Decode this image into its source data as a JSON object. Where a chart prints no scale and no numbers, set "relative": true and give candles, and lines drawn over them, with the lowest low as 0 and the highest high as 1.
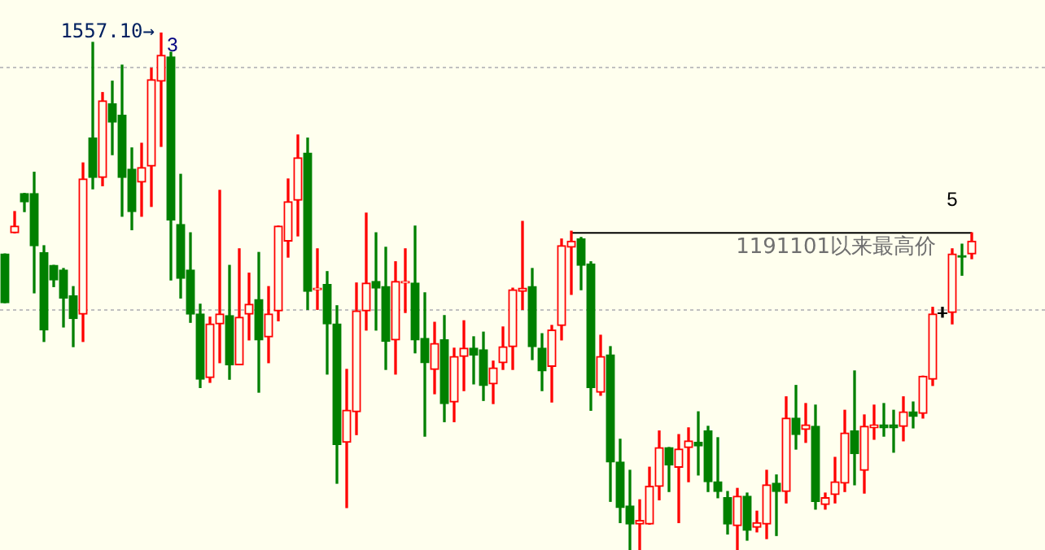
{
  "chart_data": {
    "type": "candlestick",
    "relative": true,
    "categories": [
      null,
      null,
      null,
      null,
      null,
      null,
      null,
      null,
      null,
      null,
      null,
      null,
      null,
      null,
      null,
      null,
      null,
      null,
      null,
      null,
      null,
      null,
      null,
      null,
      null,
      null,
      null,
      null,
      null,
      null,
      null,
      null,
      null,
      null,
      null,
      null,
      null,
      null,
      null,
      null,
      null,
      null,
      null,
      null,
      null,
      null,
      null,
      null,
      null,
      null,
      null,
      null,
      null,
      null,
      null,
      null,
      null,
      null,
      null,
      null,
      null,
      null,
      null,
      null,
      null,
      null,
      null,
      null,
      null,
      null,
      null,
      null,
      null,
      null,
      null,
      null,
      null,
      null,
      null,
      null,
      null,
      null,
      null,
      null,
      null,
      null,
      null,
      null,
      null,
      null,
      null,
      null,
      null,
      null,
      null,
      null,
      null,
      null,
      null,
      null
    ],
    "ohlc": [
      [
        0.572,
        0.572,
        0.478,
        0.478
      ],
      [
        0.613,
        0.654,
        0.613,
        0.626
      ],
      [
        0.689,
        0.689,
        0.654,
        0.673
      ],
      [
        0.689,
        0.73,
        0.497,
        0.588
      ],
      [
        0.575,
        0.588,
        0.403,
        0.425
      ],
      [
        0.55,
        0.55,
        0.509,
        0.522
      ],
      [
        0.541,
        0.544,
        0.431,
        0.487
      ],
      [
        0.491,
        0.509,
        0.393,
        0.447
      ],
      [
        0.456,
        0.748,
        0.403,
        0.717
      ],
      [
        0.796,
        0.981,
        0.698,
        0.72
      ],
      [
        0.72,
        0.884,
        0.704,
        0.868
      ],
      [
        0.862,
        0.906,
        0.764,
        0.827
      ],
      [
        0.84,
        0.937,
        0.645,
        0.72
      ],
      [
        0.736,
        0.777,
        0.619,
        0.654
      ],
      [
        0.711,
        0.786,
        0.645,
        0.739
      ],
      [
        0.742,
        0.931,
        0.664,
        0.909
      ],
      [
        0.906,
        1,
        0.78,
        0.956
      ],
      [
        0.953,
        0.962,
        0.522,
        0.638
      ],
      [
        0.629,
        0.726,
        0.487,
        0.525
      ],
      [
        0.541,
        0.613,
        0.44,
        0.456
      ],
      [
        0.456,
        0.475,
        0.314,
        0.33
      ],
      [
        0.333,
        0.45,
        0.324,
        0.437
      ],
      [
        0.437,
        0.695,
        0.362,
        0.456
      ],
      [
        0.453,
        0.55,
        0.33,
        0.358
      ],
      [
        0.358,
        0.582,
        0.358,
        0.45
      ],
      [
        0.456,
        0.535,
        0.406,
        0.475
      ],
      [
        0.484,
        0.575,
        0.305,
        0.406
      ],
      [
        0.412,
        0.509,
        0.362,
        0.456
      ],
      [
        0.462,
        0.626,
        0.443,
        0.626
      ],
      [
        0.597,
        0.717,
        0.566,
        0.673
      ],
      [
        0.676,
        0.802,
        0.607,
        0.758
      ],
      [
        0.767,
        0.796,
        0.465,
        0.5
      ],
      [
        0.503,
        0.582,
        0.465,
        0.506
      ],
      [
        0.513,
        0.538,
        0.34,
        0.437
      ],
      [
        0.437,
        0.472,
        0.129,
        0.204
      ],
      [
        0.208,
        0.349,
        0.082,
        0.27
      ],
      [
        0.267,
        0.516,
        0.223,
        0.462
      ],
      [
        0.462,
        0.651,
        0.425,
        0.516
      ],
      [
        0.519,
        0.613,
        0.425,
        0.506
      ],
      [
        0.509,
        0.585,
        0.349,
        0.403
      ],
      [
        0.406,
        0.557,
        0.34,
        0.519
      ],
      [
        0.516,
        0.582,
        0.459,
        0.519
      ],
      [
        0.516,
        0.626,
        0.381,
        0.406
      ],
      [
        0.409,
        0.497,
        0.22,
        0.362
      ],
      [
        0.349,
        0.44,
        0.302,
        0.399
      ],
      [
        0.406,
        0.453,
        0.248,
        0.283
      ],
      [
        0.286,
        0.39,
        0.248,
        0.374
      ],
      [
        0.374,
        0.443,
        0.308,
        0.39
      ],
      [
        0.39,
        0.412,
        0.321,
        0.377
      ],
      [
        0.387,
        0.421,
        0.289,
        0.318
      ],
      [
        0.321,
        0.365,
        0.283,
        0.352
      ],
      [
        0.362,
        0.431,
        0.349,
        0.393
      ],
      [
        0.393,
        0.506,
        0.349,
        0.503
      ],
      [
        0.5,
        0.635,
        0.465,
        0.506
      ],
      [
        0.509,
        0.544,
        0.368,
        0.393
      ],
      [
        0.39,
        0.418,
        0.308,
        0.346
      ],
      [
        0.355,
        0.434,
        0.286,
        0.425
      ],
      [
        0.434,
        0.601,
        0.406,
        0.588
      ],
      [
        0.585,
        0.616,
        0.494,
        0.597
      ],
      [
        0.601,
        0.604,
        0.503,
        0.55
      ],
      [
        0.553,
        0.557,
        0.27,
        0.314
      ],
      [
        0.305,
        0.415,
        0.299,
        0.374
      ],
      [
        0.377,
        0.393,
        0.094,
        0.17
      ],
      [
        0.17,
        0.214,
        0.053,
        0.082
      ],
      [
        0.085,
        0.154,
        0,
        0.05
      ],
      [
        0.05,
        0.097,
        0,
        0.057
      ],
      [
        0.05,
        0.16,
        0.05,
        0.123
      ],
      [
        0.123,
        0.23,
        0.097,
        0.198
      ],
      [
        0.198,
        0.198,
        0.113,
        0.164
      ],
      [
        0.16,
        0.223,
        0.053,
        0.195
      ],
      [
        0.198,
        0.236,
        0.132,
        0.211
      ],
      [
        0.208,
        0.267,
        0.145,
        0.201
      ],
      [
        0.23,
        0.239,
        0.113,
        0.132
      ],
      [
        0.132,
        0.217,
        0.101,
        0.113
      ],
      [
        0.101,
        0.113,
        0.031,
        0.05
      ],
      [
        0.047,
        0.119,
        0,
        0.104
      ],
      [
        0.104,
        0.11,
        0.019,
        0.038
      ],
      [
        0.044,
        0.075,
        0.035,
        0.053
      ],
      [
        0.05,
        0.154,
        0.022,
        0.126
      ],
      [
        0.129,
        0.145,
        0.028,
        0.113
      ],
      [
        0.113,
        0.296,
        0.091,
        0.255
      ],
      [
        0.255,
        0.318,
        0.195,
        0.223
      ],
      [
        0.233,
        0.283,
        0.208,
        0.242
      ],
      [
        0.239,
        0.28,
        0.079,
        0.094
      ],
      [
        0.088,
        0.11,
        0.079,
        0.101
      ],
      [
        0.107,
        0.179,
        0.091,
        0.132
      ],
      [
        0.129,
        0.27,
        0.113,
        0.226
      ],
      [
        0.23,
        0.346,
        0.126,
        0.186
      ],
      [
        0.154,
        0.261,
        0.11,
        0.239
      ],
      [
        0.236,
        0.28,
        0.214,
        0.242
      ],
      [
        0.242,
        0.283,
        0.22,
        0.236
      ],
      [
        0.242,
        0.27,
        0.189,
        0.236
      ],
      [
        0.239,
        0.296,
        0.211,
        0.267
      ],
      [
        0.267,
        0.286,
        0.236,
        0.258
      ],
      [
        0.264,
        0.336,
        0.255,
        0.336
      ],
      [
        0.33,
        0.469,
        0.318,
        0.456
      ],
      [
        0.459,
        0.469,
        0.45,
        0.459
      ],
      [
        0.459,
        0.582,
        0.437,
        0.572
      ],
      [
        0.569,
        0.591,
        0.531,
        0.566
      ],
      [
        0.572,
        0.613,
        0.563,
        0.597
      ]
    ],
    "colors": [
      "#008000",
      "#ff0000",
      "#008000",
      "#008000",
      "#008000",
      "#008000",
      "#008000",
      "#008000",
      "#ff0000",
      "#008000",
      "#ff0000",
      "#008000",
      "#008000",
      "#008000",
      "#ff0000",
      "#ff0000",
      "#ff0000",
      "#008000",
      "#008000",
      "#008000",
      "#008000",
      "#ff0000",
      "#ff0000",
      "#008000",
      "#ff0000",
      "#ff0000",
      "#008000",
      "#ff0000",
      "#ff0000",
      "#ff0000",
      "#ff0000",
      "#008000",
      "#ff0000",
      "#008000",
      "#008000",
      "#ff0000",
      "#ff0000",
      "#ff0000",
      "#008000",
      "#008000",
      "#ff0000",
      "#ff0000",
      "#008000",
      "#008000",
      "#ff0000",
      "#008000",
      "#ff0000",
      "#ff0000",
      "#008000",
      "#008000",
      "#ff0000",
      "#ff0000",
      "#ff0000",
      "#ff0000",
      "#008000",
      "#008000",
      "#ff0000",
      "#ff0000",
      "#ff0000",
      "#008000",
      "#008000",
      "#ff0000",
      "#008000",
      "#008000",
      "#008000",
      "#ff0000",
      "#ff0000",
      "#ff0000",
      "#008000",
      "#ff0000",
      "#ff0000",
      "#008000",
      "#008000",
      "#008000",
      "#008000",
      "#ff0000",
      "#008000",
      "#ff0000",
      "#ff0000",
      "#008000",
      "#ff0000",
      "#008000",
      "#ff0000",
      "#008000",
      "#ff0000",
      "#ff0000",
      "#ff0000",
      "#008000",
      "#ff0000",
      "#ff0000",
      "#008000",
      "#008000",
      "#ff0000",
      "#008000",
      "#ff0000",
      "#ff0000",
      "#000000",
      "#ff0000",
      "#008000",
      "#ff0000"
    ],
    "series": [
      {
        "type": "line",
        "color": "#000000",
        "values": [
          null,
          null,
          null,
          null,
          null,
          null,
          null,
          null,
          null,
          null,
          null,
          null,
          null,
          null,
          null,
          null,
          null,
          null,
          null,
          null,
          null,
          null,
          null,
          null,
          null,
          null,
          null,
          null,
          null,
          null,
          null,
          null,
          null,
          null,
          null,
          null,
          null,
          null,
          null,
          null,
          null,
          null,
          null,
          null,
          null,
          null,
          null,
          null,
          null,
          null,
          null,
          null,
          null,
          null,
          null,
          null,
          null,
          null,
          0.613,
          0.613,
          0.613,
          0.613,
          0.613,
          0.613,
          0.613,
          0.613,
          0.613,
          0.613,
          0.613,
          0.613,
          0.613,
          0.613,
          0.613,
          0.613,
          0.613,
          0.613,
          0.613,
          0.613,
          0.613,
          0.613,
          0.613,
          0.613,
          0.613,
          0.613,
          0.613,
          0.613,
          0.613,
          0.613,
          0.613,
          0.613,
          0.613,
          0.613,
          0.613,
          0.613,
          0.613,
          0.613,
          0.613,
          0.613,
          0.613,
          0.613
        ]
      }
    ],
    "ref_lines": [
      {
        "axis": "y",
        "value": 0.934,
        "color": "#c0c0c0",
        "line_style": "dotted"
      },
      {
        "axis": "y",
        "value": 0.465,
        "color": "#c0c0c0",
        "line_style": "dotted"
      }
    ],
    "annotations": [
      "1557.10→",
      "3",
      "5",
      "1191101以来最高价"
    ]
  }
}
